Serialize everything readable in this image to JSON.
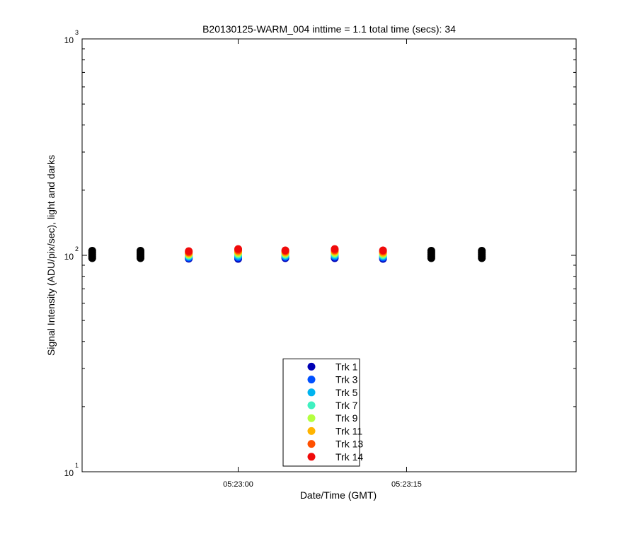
{
  "chart_data": {
    "type": "scatter",
    "title": "B20130125-WARM_004 inttime = 1.1 total time (secs): 34",
    "xlabel": "Date/Time (GMT)",
    "ylabel": "Signal Intensity (ADU/pix/sec), light and darks",
    "x": [
      "05:22:47.0",
      "05:22:51.3",
      "05:22:55.6",
      "05:23:00.0",
      "05:23:04.2",
      "05:23:08.6",
      "05:23:12.9",
      "05:23:17.2",
      "05:23:21.7"
    ],
    "xlim": [
      "05:22:46.1",
      "05:23:30.1"
    ],
    "xticks": [
      "05:23:00",
      "05:23:15"
    ],
    "ylim": [
      10,
      1000
    ],
    "log_y": true,
    "yticks": [
      {
        "value": 10,
        "label": "10",
        "exponent": "1"
      },
      {
        "value": 100,
        "label": "10",
        "exponent": "2"
      },
      {
        "value": 1000,
        "label": "10",
        "exponent": "3"
      }
    ],
    "grid": false,
    "legend": "south",
    "series": [
      {
        "name": "Trk 1",
        "color": "#0000b4",
        "values": [
          null,
          null,
          96.5,
          96.3,
          97.0,
          97.0,
          96.3,
          null,
          null
        ]
      },
      {
        "name": "Trk 3",
        "color": "#0050ff",
        "values": [
          null,
          null,
          97.5,
          97.8,
          98.2,
          98.4,
          97.6,
          null,
          null
        ]
      },
      {
        "name": "Trk 5",
        "color": "#00b4f0",
        "values": [
          null,
          null,
          98.6,
          99.3,
          99.4,
          99.8,
          98.9,
          null,
          null
        ]
      },
      {
        "name": "Trk 7",
        "color": "#40f0c0",
        "values": [
          null,
          null,
          99.7,
          100.8,
          100.6,
          101.2,
          100.2,
          null,
          null
        ]
      },
      {
        "name": "Trk 9",
        "color": "#b4ff40",
        "values": [
          null,
          null,
          100.8,
          102.3,
          101.8,
          102.6,
          101.5,
          null,
          null
        ]
      },
      {
        "name": "Trk 11",
        "color": "#ffb400",
        "values": [
          null,
          null,
          102.0,
          103.8,
          103.0,
          104.0,
          102.8,
          null,
          null
        ]
      },
      {
        "name": "Trk 13",
        "color": "#ff5000",
        "values": [
          null,
          null,
          103.2,
          105.3,
          104.2,
          105.4,
          104.1,
          null,
          null
        ]
      },
      {
        "name": "Trk 14",
        "color": "#f00a0a",
        "values": [
          null,
          null,
          104.5,
          106.9,
          105.4,
          106.9,
          105.4,
          null,
          null
        ]
      },
      {
        "color": "#000000",
        "x": [
          "05:22:47.0",
          "05:22:47.0",
          "05:22:47.0",
          "05:22:47.0",
          "05:22:47.0",
          "05:22:51.3",
          "05:22:51.3",
          "05:22:51.3",
          "05:22:51.3",
          "05:22:51.3",
          "05:23:17.2",
          "05:23:17.2",
          "05:23:17.2",
          "05:23:17.2",
          "05:23:17.2",
          "05:23:21.7",
          "05:23:21.7",
          "05:23:21.7",
          "05:23:21.7",
          "05:23:21.7"
        ],
        "values": [
          97,
          99,
          101,
          103,
          105,
          97,
          99,
          101,
          103,
          105,
          97,
          99,
          101,
          103,
          105,
          97,
          99,
          101,
          103,
          105
        ]
      }
    ]
  }
}
